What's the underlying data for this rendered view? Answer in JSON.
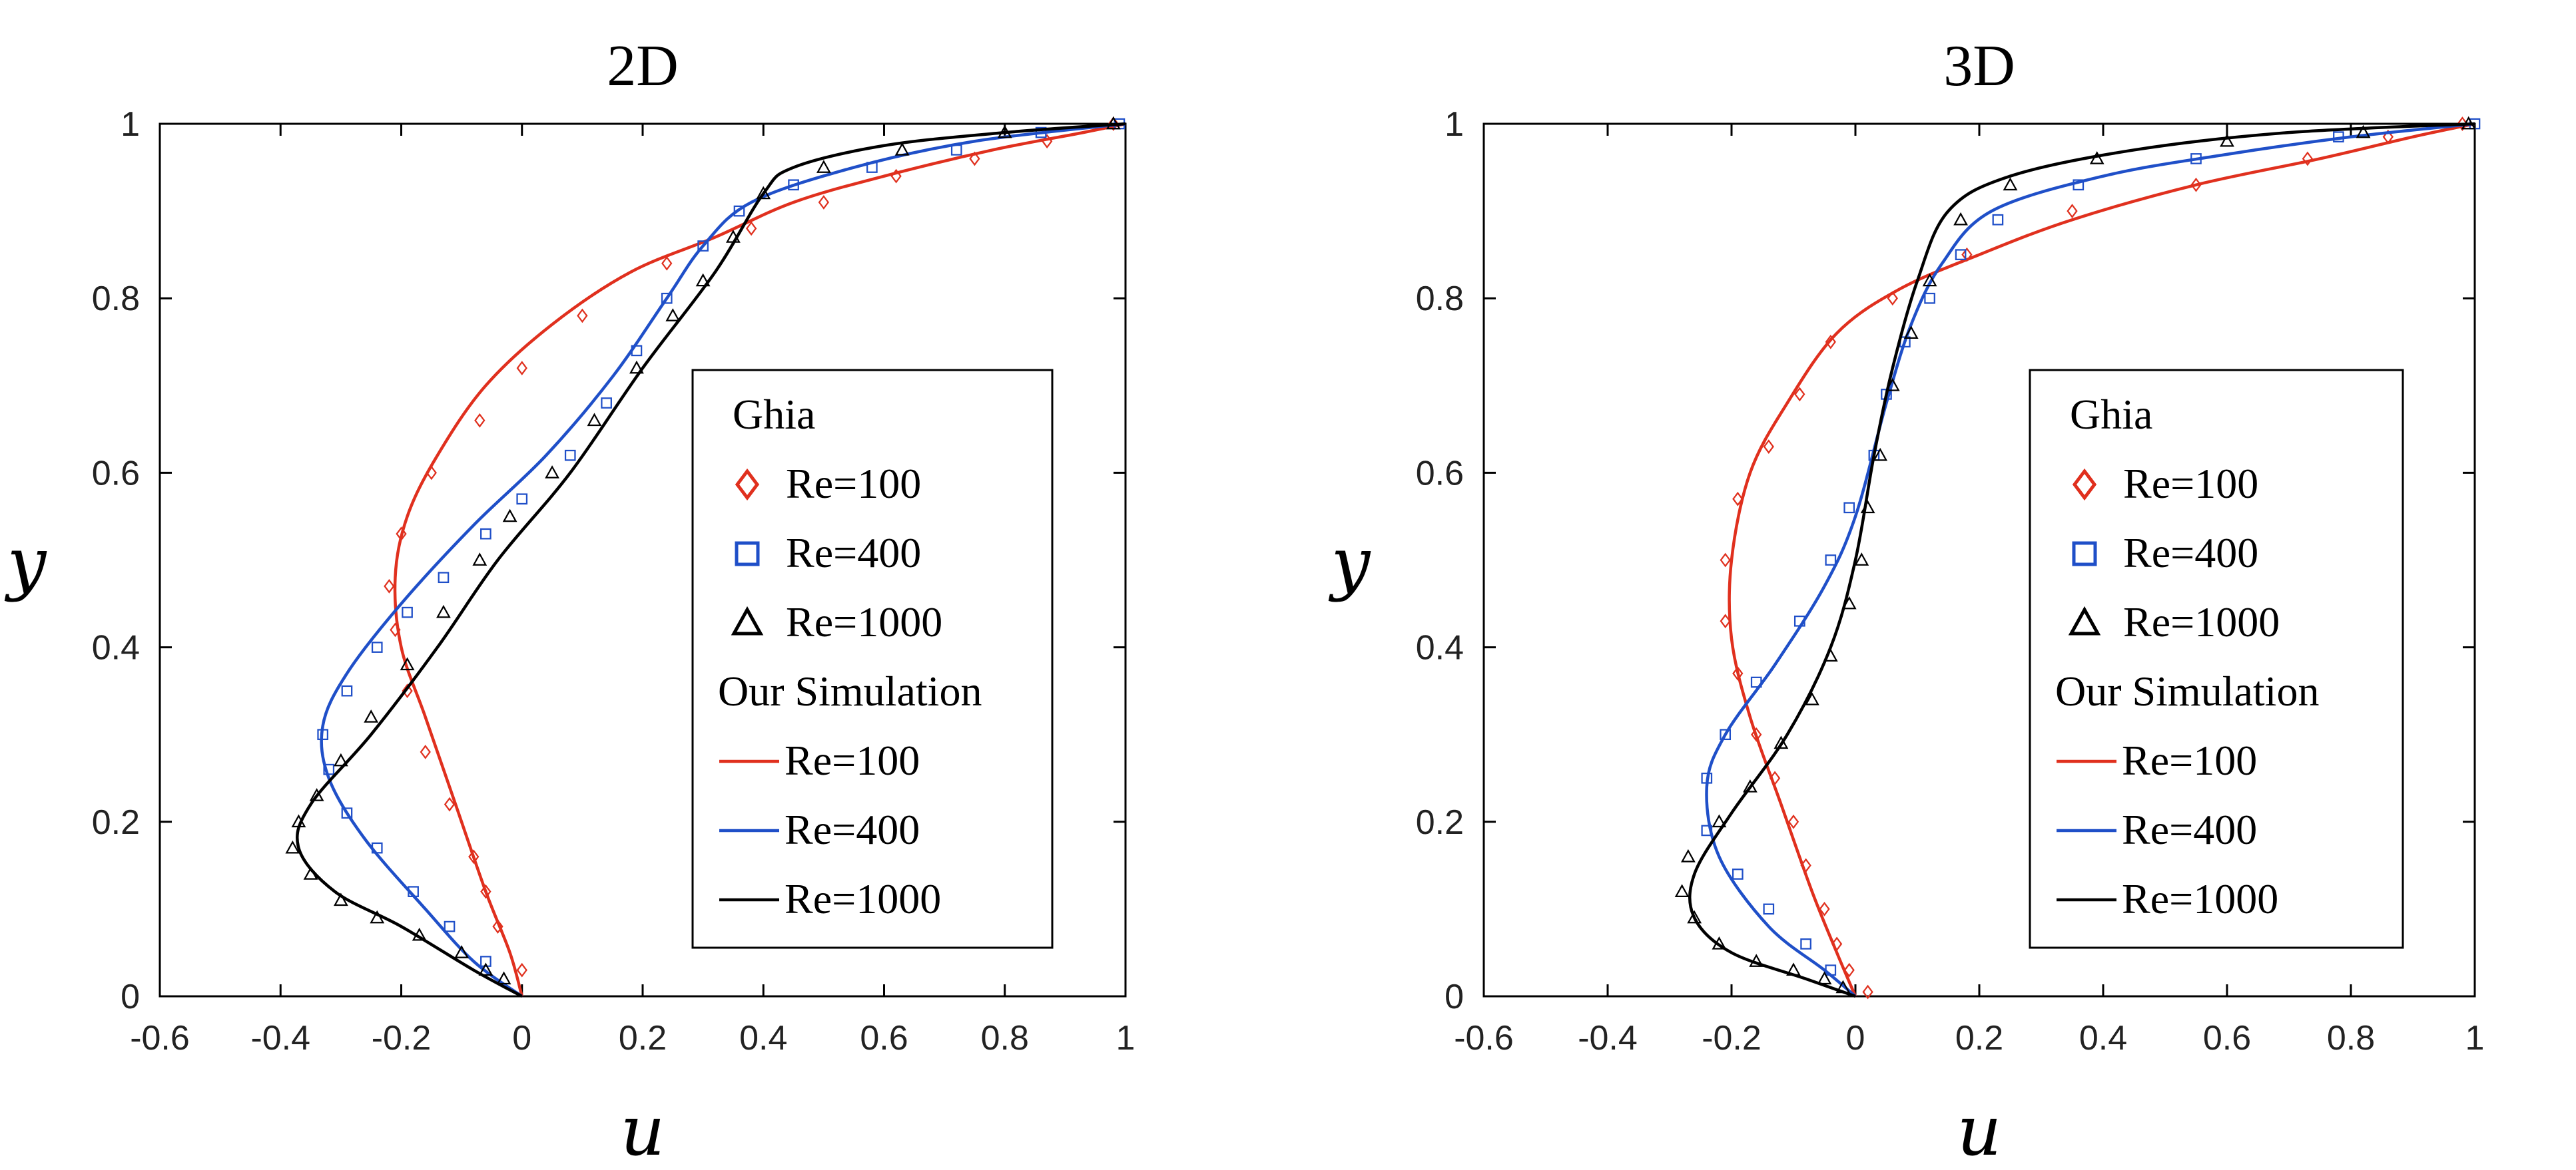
{
  "chart_data": [
    {
      "type": "line",
      "title": "2D",
      "xlabel": "u",
      "ylabel": "y",
      "xlim": [
        -0.6,
        1
      ],
      "ylim": [
        0,
        1
      ],
      "xticks": [
        "-0.6",
        "-0.4",
        "-0.2",
        "0",
        "0.2",
        "0.4",
        "0.6",
        "0.8",
        "1"
      ],
      "yticks": [
        "0",
        "0.2",
        "0.4",
        "0.6",
        "0.8",
        "1"
      ],
      "grid": false,
      "legend_position": "center-right",
      "legend": {
        "group1": "Ghia",
        "group2": "Our Simulation",
        "entries": [
          "Re=100",
          "Re=400",
          "Re=1000"
        ]
      },
      "series": [
        {
          "name": "Re=100",
          "color": "#e0301e",
          "marker": "diamond",
          "line": [
            [
              0,
              0
            ],
            [
              -0.02,
              0.05
            ],
            [
              -0.06,
              0.12
            ],
            [
              -0.11,
              0.22
            ],
            [
              -0.16,
              0.32
            ],
            [
              -0.2,
              0.4
            ],
            [
              -0.21,
              0.48
            ],
            [
              -0.19,
              0.55
            ],
            [
              -0.14,
              0.62
            ],
            [
              -0.06,
              0.7
            ],
            [
              0.05,
              0.77
            ],
            [
              0.18,
              0.83
            ],
            [
              0.32,
              0.87
            ],
            [
              0.45,
              0.91
            ],
            [
              0.6,
              0.94
            ],
            [
              0.78,
              0.97
            ],
            [
              0.93,
              0.99
            ],
            [
              1,
              1
            ]
          ],
          "points": [
            [
              0,
              0.03
            ],
            [
              -0.04,
              0.08
            ],
            [
              -0.06,
              0.12
            ],
            [
              -0.08,
              0.16
            ],
            [
              -0.12,
              0.22
            ],
            [
              -0.16,
              0.28
            ],
            [
              -0.19,
              0.35
            ],
            [
              -0.21,
              0.42
            ],
            [
              -0.22,
              0.47
            ],
            [
              -0.2,
              0.53
            ],
            [
              -0.15,
              0.6
            ],
            [
              -0.07,
              0.66
            ],
            [
              0,
              0.72
            ],
            [
              0.1,
              0.78
            ],
            [
              0.24,
              0.84
            ],
            [
              0.38,
              0.88
            ],
            [
              0.5,
              0.91
            ],
            [
              0.62,
              0.94
            ],
            [
              0.75,
              0.96
            ],
            [
              0.87,
              0.98
            ],
            [
              0.98,
              1
            ]
          ]
        },
        {
          "name": "Re=400",
          "color": "#1f4fc8",
          "marker": "square",
          "line": [
            [
              0,
              0
            ],
            [
              -0.08,
              0.04
            ],
            [
              -0.16,
              0.1
            ],
            [
              -0.26,
              0.18
            ],
            [
              -0.32,
              0.25
            ],
            [
              -0.33,
              0.31
            ],
            [
              -0.29,
              0.37
            ],
            [
              -0.2,
              0.45
            ],
            [
              -0.08,
              0.54
            ],
            [
              0.04,
              0.62
            ],
            [
              0.15,
              0.71
            ],
            [
              0.24,
              0.8
            ],
            [
              0.3,
              0.86
            ],
            [
              0.38,
              0.91
            ],
            [
              0.55,
              0.95
            ],
            [
              0.75,
              0.98
            ],
            [
              1,
              1
            ]
          ],
          "points": [
            [
              -0.06,
              0.04
            ],
            [
              -0.12,
              0.08
            ],
            [
              -0.18,
              0.12
            ],
            [
              -0.24,
              0.17
            ],
            [
              -0.29,
              0.21
            ],
            [
              -0.32,
              0.26
            ],
            [
              -0.33,
              0.3
            ],
            [
              -0.29,
              0.35
            ],
            [
              -0.24,
              0.4
            ],
            [
              -0.19,
              0.44
            ],
            [
              -0.13,
              0.48
            ],
            [
              -0.06,
              0.53
            ],
            [
              0,
              0.57
            ],
            [
              0.08,
              0.62
            ],
            [
              0.14,
              0.68
            ],
            [
              0.19,
              0.74
            ],
            [
              0.24,
              0.8
            ],
            [
              0.3,
              0.86
            ],
            [
              0.36,
              0.9
            ],
            [
              0.45,
              0.93
            ],
            [
              0.58,
              0.95
            ],
            [
              0.72,
              0.97
            ],
            [
              0.86,
              0.99
            ],
            [
              0.99,
              1
            ]
          ]
        },
        {
          "name": "Re=1000",
          "color": "#000000",
          "marker": "triangle",
          "line": [
            [
              0,
              0
            ],
            [
              -0.08,
              0.03
            ],
            [
              -0.2,
              0.08
            ],
            [
              -0.31,
              0.12
            ],
            [
              -0.37,
              0.17
            ],
            [
              -0.35,
              0.22
            ],
            [
              -0.25,
              0.3
            ],
            [
              -0.14,
              0.4
            ],
            [
              -0.04,
              0.5
            ],
            [
              0.08,
              0.6
            ],
            [
              0.2,
              0.72
            ],
            [
              0.32,
              0.83
            ],
            [
              0.4,
              0.92
            ],
            [
              0.45,
              0.95
            ],
            [
              0.6,
              0.975
            ],
            [
              0.8,
              0.99
            ],
            [
              1,
              1
            ]
          ],
          "points": [
            [
              -0.03,
              0.02
            ],
            [
              -0.06,
              0.03
            ],
            [
              -0.1,
              0.05
            ],
            [
              -0.17,
              0.07
            ],
            [
              -0.24,
              0.09
            ],
            [
              -0.3,
              0.11
            ],
            [
              -0.35,
              0.14
            ],
            [
              -0.38,
              0.17
            ],
            [
              -0.37,
              0.2
            ],
            [
              -0.34,
              0.23
            ],
            [
              -0.3,
              0.27
            ],
            [
              -0.25,
              0.32
            ],
            [
              -0.19,
              0.38
            ],
            [
              -0.13,
              0.44
            ],
            [
              -0.07,
              0.5
            ],
            [
              -0.02,
              0.55
            ],
            [
              0.05,
              0.6
            ],
            [
              0.12,
              0.66
            ],
            [
              0.19,
              0.72
            ],
            [
              0.25,
              0.78
            ],
            [
              0.3,
              0.82
            ],
            [
              0.35,
              0.87
            ],
            [
              0.4,
              0.92
            ],
            [
              0.5,
              0.95
            ],
            [
              0.63,
              0.97
            ],
            [
              0.8,
              0.99
            ],
            [
              0.98,
              1
            ]
          ]
        }
      ]
    },
    {
      "type": "line",
      "title": "3D",
      "xlabel": "u",
      "ylabel": "y",
      "xlim": [
        -0.6,
        1
      ],
      "ylim": [
        0,
        1
      ],
      "xticks": [
        "-0.6",
        "-0.4",
        "-0.2",
        "0",
        "0.2",
        "0.4",
        "0.6",
        "0.8",
        "1"
      ],
      "yticks": [
        "0",
        "0.2",
        "0.4",
        "0.6",
        "0.8",
        "1"
      ],
      "grid": false,
      "legend_position": "center-right",
      "legend": {
        "group1": "Ghia",
        "group2": "Our Simulation",
        "entries": [
          "Re=100",
          "Re=400",
          "Re=1000"
        ]
      },
      "series": [
        {
          "name": "Re=100",
          "color": "#e0301e",
          "marker": "diamond",
          "line": [
            [
              0,
              0
            ],
            [
              -0.03,
              0.05
            ],
            [
              -0.07,
              0.12
            ],
            [
              -0.12,
              0.22
            ],
            [
              -0.17,
              0.32
            ],
            [
              -0.2,
              0.41
            ],
            [
              -0.2,
              0.5
            ],
            [
              -0.17,
              0.6
            ],
            [
              -0.11,
              0.68
            ],
            [
              -0.03,
              0.76
            ],
            [
              0.07,
              0.81
            ],
            [
              0.2,
              0.85
            ],
            [
              0.35,
              0.89
            ],
            [
              0.55,
              0.93
            ],
            [
              0.75,
              0.96
            ],
            [
              0.9,
              0.985
            ],
            [
              1,
              1
            ]
          ],
          "points": [
            [
              0.02,
              0.005
            ],
            [
              -0.01,
              0.03
            ],
            [
              -0.03,
              0.06
            ],
            [
              -0.05,
              0.1
            ],
            [
              -0.08,
              0.15
            ],
            [
              -0.1,
              0.2
            ],
            [
              -0.13,
              0.25
            ],
            [
              -0.16,
              0.3
            ],
            [
              -0.19,
              0.37
            ],
            [
              -0.21,
              0.43
            ],
            [
              -0.21,
              0.5
            ],
            [
              -0.19,
              0.57
            ],
            [
              -0.14,
              0.63
            ],
            [
              -0.09,
              0.69
            ],
            [
              -0.04,
              0.75
            ],
            [
              0.06,
              0.8
            ],
            [
              0.18,
              0.85
            ],
            [
              0.35,
              0.9
            ],
            [
              0.55,
              0.93
            ],
            [
              0.73,
              0.96
            ],
            [
              0.86,
              0.985
            ],
            [
              0.98,
              1
            ]
          ]
        },
        {
          "name": "Re=400",
          "color": "#1f4fc8",
          "marker": "square",
          "line": [
            [
              0,
              0
            ],
            [
              -0.05,
              0.03
            ],
            [
              -0.14,
              0.08
            ],
            [
              -0.22,
              0.16
            ],
            [
              -0.24,
              0.24
            ],
            [
              -0.21,
              0.3
            ],
            [
              -0.13,
              0.38
            ],
            [
              -0.05,
              0.47
            ],
            [
              0,
              0.55
            ],
            [
              0.05,
              0.68
            ],
            [
              0.09,
              0.77
            ],
            [
              0.14,
              0.84
            ],
            [
              0.22,
              0.9
            ],
            [
              0.4,
              0.94
            ],
            [
              0.6,
              0.965
            ],
            [
              0.8,
              0.985
            ],
            [
              1,
              1
            ]
          ],
          "points": [
            [
              -0.04,
              0.03
            ],
            [
              -0.08,
              0.06
            ],
            [
              -0.14,
              0.1
            ],
            [
              -0.19,
              0.14
            ],
            [
              -0.24,
              0.19
            ],
            [
              -0.24,
              0.25
            ],
            [
              -0.21,
              0.3
            ],
            [
              -0.16,
              0.36
            ],
            [
              -0.09,
              0.43
            ],
            [
              -0.04,
              0.5
            ],
            [
              -0.01,
              0.56
            ],
            [
              0.03,
              0.62
            ],
            [
              0.05,
              0.69
            ],
            [
              0.08,
              0.75
            ],
            [
              0.12,
              0.8
            ],
            [
              0.17,
              0.85
            ],
            [
              0.23,
              0.89
            ],
            [
              0.36,
              0.93
            ],
            [
              0.55,
              0.96
            ],
            [
              0.78,
              0.985
            ],
            [
              1,
              1
            ]
          ]
        },
        {
          "name": "Re=1000",
          "color": "#000000",
          "marker": "triangle",
          "line": [
            [
              0,
              0
            ],
            [
              -0.08,
              0.02
            ],
            [
              -0.2,
              0.05
            ],
            [
              -0.26,
              0.09
            ],
            [
              -0.26,
              0.14
            ],
            [
              -0.2,
              0.21
            ],
            [
              -0.11,
              0.3
            ],
            [
              -0.04,
              0.4
            ],
            [
              0,
              0.5
            ],
            [
              0.03,
              0.62
            ],
            [
              0.06,
              0.72
            ],
            [
              0.1,
              0.82
            ],
            [
              0.15,
              0.9
            ],
            [
              0.25,
              0.94
            ],
            [
              0.45,
              0.97
            ],
            [
              0.7,
              0.99
            ],
            [
              1,
              1
            ]
          ],
          "points": [
            [
              -0.02,
              0.01
            ],
            [
              -0.05,
              0.02
            ],
            [
              -0.1,
              0.03
            ],
            [
              -0.16,
              0.04
            ],
            [
              -0.22,
              0.06
            ],
            [
              -0.26,
              0.09
            ],
            [
              -0.28,
              0.12
            ],
            [
              -0.27,
              0.16
            ],
            [
              -0.22,
              0.2
            ],
            [
              -0.17,
              0.24
            ],
            [
              -0.12,
              0.29
            ],
            [
              -0.07,
              0.34
            ],
            [
              -0.04,
              0.39
            ],
            [
              -0.01,
              0.45
            ],
            [
              0.01,
              0.5
            ],
            [
              0.02,
              0.56
            ],
            [
              0.04,
              0.62
            ],
            [
              0.06,
              0.7
            ],
            [
              0.09,
              0.76
            ],
            [
              0.12,
              0.82
            ],
            [
              0.17,
              0.89
            ],
            [
              0.25,
              0.93
            ],
            [
              0.39,
              0.96
            ],
            [
              0.6,
              0.98
            ],
            [
              0.82,
              0.99
            ],
            [
              0.99,
              1
            ]
          ]
        }
      ]
    }
  ]
}
